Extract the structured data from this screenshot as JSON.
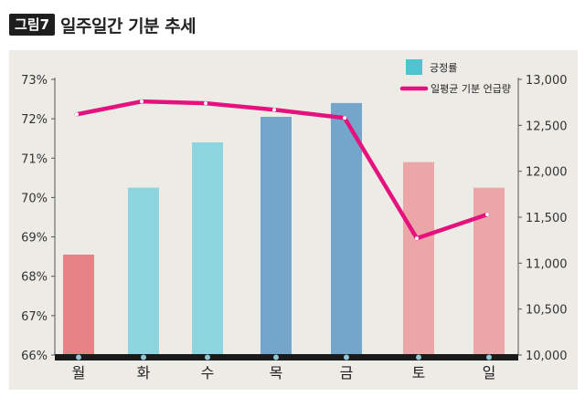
{
  "figure": {
    "badge": "그림7",
    "title": "일주일간 기분 추세"
  },
  "chart_data": {
    "type": "bar",
    "title": "일주일간 기분 추세",
    "categories": [
      "월",
      "화",
      "수",
      "목",
      "금",
      "토",
      "일"
    ],
    "series": [
      {
        "name": "긍정률",
        "kind": "bar",
        "axis": "left",
        "values": [
          68.55,
          70.25,
          71.4,
          72.05,
          72.4,
          70.9,
          70.25
        ],
        "colors": [
          "#e58387",
          "#8dd5de",
          "#8dd5de",
          "#74a6cb",
          "#74a6cb",
          "#eba7a8",
          "#eba7a8"
        ]
      },
      {
        "name": "일평균 기분 언급량",
        "kind": "line",
        "axis": "right",
        "values": [
          12620,
          12760,
          12740,
          12670,
          12580,
          11270,
          11530
        ],
        "color": "#e5127e"
      }
    ],
    "y_left": {
      "min": 66,
      "max": 73,
      "step": 1,
      "tick_labels": [
        "66%",
        "67%",
        "68%",
        "69%",
        "70%",
        "71%",
        "72%",
        "73%"
      ]
    },
    "y_right": {
      "min": 10000,
      "max": 13000,
      "step": 500,
      "tick_labels": [
        "10,000",
        "10,500",
        "11,000",
        "11,500",
        "12,000",
        "12,500",
        "13,000"
      ]
    },
    "legend": {
      "position": "top-right",
      "items": [
        {
          "label": "긍정률",
          "swatch": "#4fc3cf"
        },
        {
          "label": "일평균 기분 언급량",
          "swatch": "#e5127e"
        }
      ]
    },
    "grid": false
  }
}
